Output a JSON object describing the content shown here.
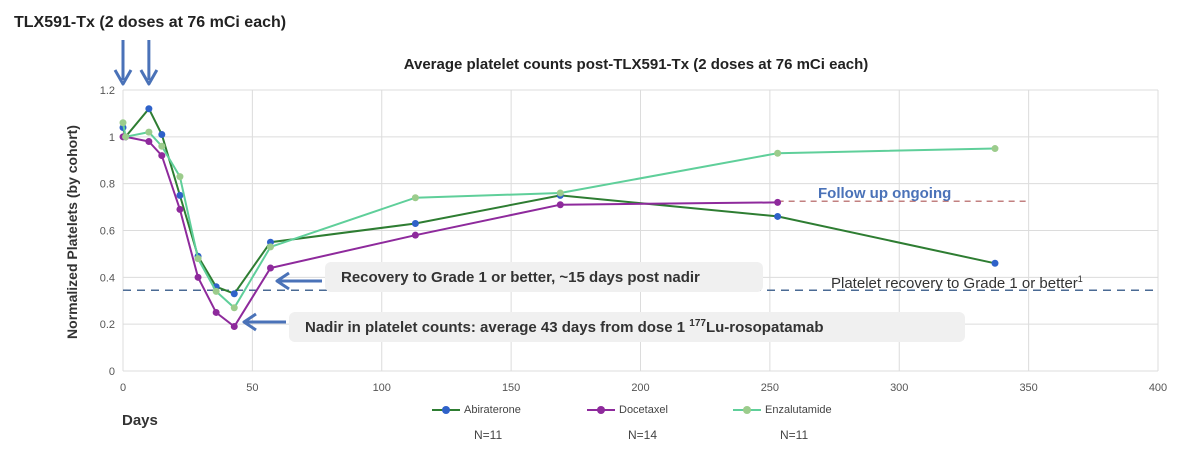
{
  "heading": "TLX591-Tx (2 doses at 76 mCi each)",
  "annotations": {
    "recovery": "Recovery to Grade 1 or better, ~15 days post nadir",
    "nadir_main": "Nadir in platelet counts: average 43 days from dose 1 ",
    "nadir_sup": "177",
    "nadir_tail": "Lu-rosopatamab",
    "follow_up": "Follow up ongoing",
    "recovery_line_label": "Platelet recovery to Grade 1 or better",
    "recovery_line_sup": "1"
  },
  "legend_n": [
    "N=11",
    "N=14",
    "N=11"
  ],
  "colors": {
    "abiraterone": "#2e7d32",
    "abiraterone_marker": "#2f62c9",
    "docetaxel": "#8e2a9c",
    "enzalutamide": "#5fcf9a",
    "enzalutamide_marker": "#9ccc8c",
    "threshold": "#4a6a94",
    "followup_dash": "#c28080",
    "arrow": "#4a72b8",
    "grid": "#dcdcdc"
  },
  "chart_data": {
    "type": "line",
    "title": "Average platelet counts post-TLX591-Tx (2 doses at 76 mCi each)",
    "xlabel": "Days",
    "ylabel": "Normalized Platelets (by cohort)",
    "xlim": [
      0,
      400
    ],
    "ylim": [
      0,
      1.2
    ],
    "xticks": [
      "0",
      "50",
      "100",
      "150",
      "200",
      "250",
      "300",
      "350",
      "400"
    ],
    "yticks": [
      "0",
      "0.2",
      "0.4",
      "0.6",
      "0.8",
      "1",
      "1.2"
    ],
    "grid": true,
    "legend_position": "bottom",
    "dose_days": [
      0,
      10
    ],
    "threshold_y": 0.345,
    "followup_y": 0.725,
    "series": [
      {
        "name": "Abiraterone",
        "x": [
          0,
          1,
          10,
          15,
          22,
          29,
          36,
          43,
          57,
          113,
          169,
          253,
          337
        ],
        "y": [
          1.04,
          1.0,
          1.12,
          1.01,
          0.75,
          0.49,
          0.36,
          0.33,
          0.55,
          0.63,
          0.75,
          0.66,
          0.46
        ]
      },
      {
        "name": "Docetaxel",
        "x": [
          0,
          1,
          10,
          15,
          22,
          29,
          36,
          43,
          57,
          113,
          169,
          253
        ],
        "y": [
          1.0,
          1.0,
          0.98,
          0.92,
          0.69,
          0.4,
          0.25,
          0.19,
          0.44,
          0.58,
          0.71,
          0.72
        ]
      },
      {
        "name": "Enzalutamide",
        "x": [
          0,
          1,
          10,
          15,
          22,
          29,
          36,
          43,
          57,
          113,
          169,
          253,
          337
        ],
        "y": [
          1.06,
          1.0,
          1.02,
          0.96,
          0.83,
          0.48,
          0.34,
          0.27,
          0.53,
          0.74,
          0.76,
          0.93,
          0.95
        ]
      }
    ]
  }
}
